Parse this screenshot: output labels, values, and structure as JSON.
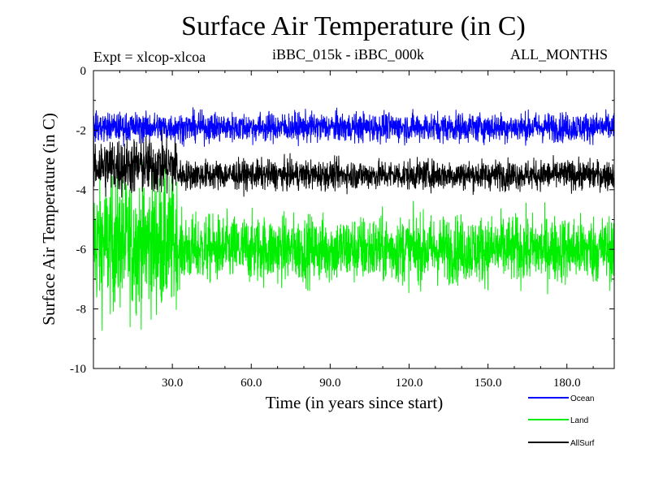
{
  "chart_data": {
    "type": "line",
    "title": "Surface Air Temperature (in C)",
    "subtitle_left": "Expt = xlcop-xlcoa",
    "subtitle_center": "iBBC_015k - iBBC_000k",
    "subtitle_right": "ALL_MONTHS",
    "xlabel": "Time (in years since start)",
    "ylabel": "Surface Air Temperature (in C)",
    "xlim": [
      0,
      198
    ],
    "ylim": [
      -10,
      0
    ],
    "xticks": [
      30,
      60,
      90,
      120,
      150,
      180
    ],
    "xtick_labels": [
      "30.0",
      "60.0",
      "90.0",
      "120.0",
      "150.0",
      "180.0"
    ],
    "yticks": [
      0,
      -2,
      -4,
      -6,
      -8,
      -10
    ],
    "ytick_labels": [
      "0",
      "-2",
      "-4",
      "-6",
      "-8",
      "-10"
    ],
    "series": [
      {
        "name": "Ocean",
        "color": "#0000ff",
        "mean_early": -1.9,
        "amp_early": 0.35,
        "mean_late": -1.9,
        "amp_late": 0.35,
        "break_year": 32
      },
      {
        "name": "Land",
        "color": "#00ee00",
        "mean_early": -5.8,
        "amp_early": 1.6,
        "mean_late": -6.0,
        "amp_late": 0.8,
        "break_year": 32
      },
      {
        "name": "AllSurf",
        "color": "#000000",
        "mean_early": -3.2,
        "amp_early": 0.7,
        "mean_late": -3.5,
        "amp_late": 0.35,
        "break_year": 32
      }
    ]
  }
}
